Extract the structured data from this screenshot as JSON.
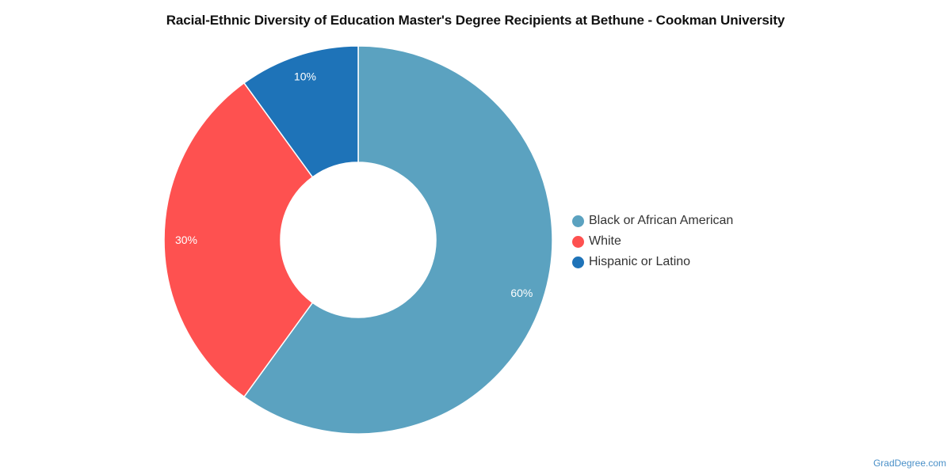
{
  "chart_data": {
    "type": "pie",
    "title": "Racial-Ethnic Diversity of Education Master's Degree Recipients at Bethune - Cookman University",
    "donut": true,
    "legend_position": "right",
    "slices": [
      {
        "label": "Black or African American",
        "value": 60,
        "display": "60%",
        "color": "#5ba2c0"
      },
      {
        "label": "White",
        "value": 30,
        "display": "30%",
        "color": "#fe5150"
      },
      {
        "label": "Hispanic or Latino",
        "value": 10,
        "display": "10%",
        "color": "#1e73b8"
      }
    ]
  },
  "source": "GradDegree.com"
}
